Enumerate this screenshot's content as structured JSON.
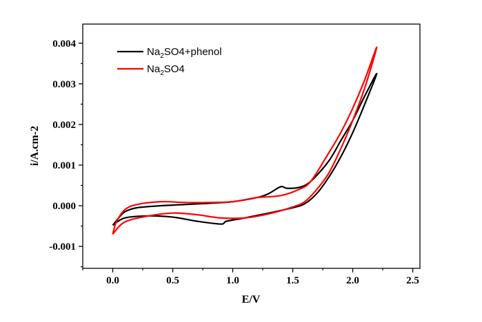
{
  "chart_data": {
    "type": "line",
    "title": "",
    "xlabel": "E/V",
    "ylabel": "i/A.cm-2",
    "xlim": [
      -0.25,
      2.56
    ],
    "ylim": [
      -0.00154,
      0.00447
    ],
    "xticks": [
      0.0,
      0.5,
      1.0,
      1.5,
      2.0,
      2.5
    ],
    "xtick_labels": [
      "0.0",
      "0.5",
      "1.0",
      "1.5",
      "2.0",
      "2.5"
    ],
    "yticks": [
      -0.001,
      0.0,
      0.001,
      0.002,
      0.003,
      0.004
    ],
    "ytick_labels": [
      "-0.001",
      "0.000",
      "0.001",
      "0.002",
      "0.003",
      "0.004"
    ],
    "grid": false,
    "legend_position": "top-left",
    "series": [
      {
        "name": "Na2SO4+phenol",
        "label_parts": [
          "Na",
          "2",
          "SO4+phenol"
        ],
        "color": "#000000",
        "x": [
          0.0,
          0.05,
          0.1,
          0.2,
          0.4,
          0.6,
          0.8,
          1.0,
          1.2,
          1.3,
          1.4,
          1.45,
          1.55,
          1.65,
          1.8,
          1.9,
          2.0,
          2.1,
          2.2,
          2.1,
          2.0,
          1.9,
          1.8,
          1.7,
          1.6,
          1.5,
          1.3,
          1.1,
          0.95,
          0.9,
          0.7,
          0.5,
          0.3,
          0.1,
          0.0
        ],
        "y": [
          -0.00048,
          -0.0003,
          -0.00015,
          -5e-05,
          0.0,
          3e-05,
          6e-05,
          0.0001,
          0.0002,
          0.0003,
          0.00047,
          0.00043,
          0.00045,
          0.0006,
          0.0011,
          0.0016,
          0.0021,
          0.0027,
          0.00325,
          0.0025,
          0.0018,
          0.0012,
          0.0007,
          0.0003,
          5e-05,
          -5e-05,
          -0.00018,
          -0.0003,
          -0.00038,
          -0.00045,
          -0.00038,
          -0.00028,
          -0.00025,
          -0.0003,
          -0.00048
        ]
      },
      {
        "name": "Na2SO4",
        "label_parts": [
          "Na",
          "2",
          "SO4"
        ],
        "color": "#ff0000",
        "x": [
          0.0,
          0.03,
          0.1,
          0.2,
          0.4,
          0.6,
          0.8,
          1.0,
          1.2,
          1.4,
          1.55,
          1.65,
          1.8,
          1.9,
          2.0,
          2.1,
          2.2,
          2.1,
          2.0,
          1.9,
          1.8,
          1.7,
          1.6,
          1.5,
          1.3,
          1.1,
          0.9,
          0.7,
          0.5,
          0.3,
          0.1,
          0.0
        ],
        "y": [
          -0.0007,
          -0.0004,
          -0.0001,
          3e-05,
          0.0001,
          8e-05,
          8e-05,
          0.0001,
          0.0002,
          0.00025,
          0.0004,
          0.0006,
          0.0013,
          0.0018,
          0.0024,
          0.0031,
          0.0039,
          0.0029,
          0.0021,
          0.0014,
          0.0008,
          0.0004,
          0.0001,
          -3e-05,
          -0.0002,
          -0.0003,
          -0.0003,
          -0.00022,
          -0.00018,
          -0.00025,
          -0.0004,
          -0.0007
        ]
      }
    ]
  }
}
